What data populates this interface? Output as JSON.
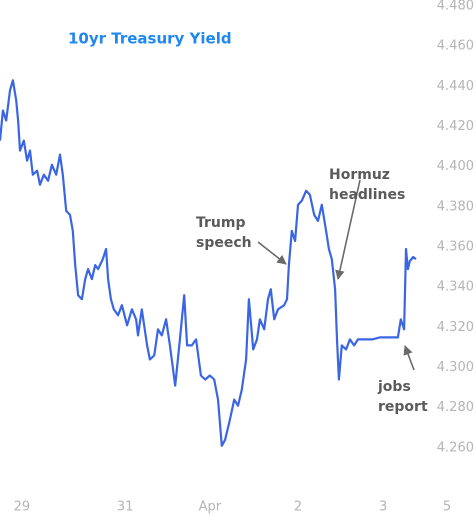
{
  "chart_data": {
    "type": "line",
    "title": "10yr Treasury Yield",
    "annotations": [
      [
        "Trump",
        "speech"
      ],
      [
        "Hormuz",
        "headlines"
      ],
      [
        "jobs",
        "report"
      ]
    ],
    "xlim": [
      0,
      100
    ],
    "xticks": [
      {
        "value": 4.6,
        "label": "29"
      },
      {
        "value": 26.3,
        "label": "31"
      },
      {
        "value": 44.1,
        "label": "Apr"
      },
      {
        "value": 62.6,
        "label": "2"
      },
      {
        "value": 80.5,
        "label": "3"
      },
      {
        "value": 93.9,
        "label": "5"
      }
    ],
    "ylim": [
      4.239,
      4.483
    ],
    "yticks": [
      {
        "value": 4.26,
        "label": "4.260"
      },
      {
        "value": 4.28,
        "label": "4.280"
      },
      {
        "value": 4.3,
        "label": "4.300"
      },
      {
        "value": 4.32,
        "label": "4.320"
      },
      {
        "value": 4.34,
        "label": "4.340"
      },
      {
        "value": 4.36,
        "label": "4.360"
      },
      {
        "value": 4.38,
        "label": "4.380"
      },
      {
        "value": 4.4,
        "label": "4.400"
      },
      {
        "value": 4.42,
        "label": "4.420"
      },
      {
        "value": 4.44,
        "label": "4.440"
      },
      {
        "value": 4.46,
        "label": "4.460"
      },
      {
        "value": 4.48,
        "label": "4.480"
      }
    ],
    "grid": false,
    "series": [
      {
        "color": "#3a66e3",
        "x": [
          0,
          0.6,
          1.3,
          2.1,
          2.7,
          3.4,
          3.8,
          4.2,
          5.0,
          5.7,
          6.3,
          6.9,
          7.8,
          8.4,
          9.2,
          10.1,
          10.9,
          11.8,
          12.6,
          13.2,
          13.9,
          14.7,
          15.3,
          15.8,
          16.4,
          17.2,
          17.9,
          18.5,
          19.3,
          20.0,
          20.6,
          21.6,
          22.3,
          22.7,
          23.3,
          23.9,
          24.8,
          25.6,
          26.7,
          27.7,
          28.6,
          29.0,
          29.8,
          30.9,
          31.5,
          32.4,
          33.2,
          34.0,
          34.9,
          35.7,
          36.8,
          37.8,
          38.7,
          39.3,
          40.3,
          41.2,
          42.2,
          43.1,
          44.1,
          45.0,
          45.8,
          46.6,
          47.3,
          48.3,
          49.2,
          50.0,
          50.8,
          51.7,
          52.3,
          53.2,
          54.0,
          54.6,
          55.5,
          56.3,
          56.9,
          57.6,
          58.4,
          59.7,
          60.3,
          60.7,
          61.3,
          62.0,
          62.6,
          63.4,
          64.3,
          65.1,
          66.0,
          66.8,
          67.6,
          68.5,
          69.1,
          69.7,
          70.4,
          70.8,
          71.2,
          71.8,
          72.7,
          73.5,
          74.4,
          75.2,
          76.1,
          76.9,
          78.2,
          79.8,
          81.5,
          83.6,
          84.2,
          84.9,
          85.3,
          85.7,
          86.1,
          86.8,
          87.4
        ],
        "values": [
          4.413,
          4.428,
          4.423,
          4.438,
          4.443,
          4.433,
          4.423,
          4.408,
          4.413,
          4.403,
          4.408,
          4.396,
          4.398,
          4.391,
          4.396,
          4.393,
          4.401,
          4.396,
          4.406,
          4.396,
          4.378,
          4.376,
          4.368,
          4.351,
          4.336,
          4.334,
          4.344,
          4.349,
          4.344,
          4.351,
          4.349,
          4.354,
          4.359,
          4.344,
          4.334,
          4.329,
          4.326,
          4.331,
          4.321,
          4.329,
          4.324,
          4.316,
          4.329,
          4.311,
          4.304,
          4.306,
          4.319,
          4.316,
          4.324,
          4.311,
          4.291,
          4.314,
          4.336,
          4.311,
          4.311,
          4.314,
          4.296,
          4.294,
          4.296,
          4.294,
          4.284,
          4.261,
          4.264,
          4.274,
          4.284,
          4.281,
          4.289,
          4.304,
          4.334,
          4.309,
          4.314,
          4.324,
          4.319,
          4.334,
          4.339,
          4.324,
          4.329,
          4.331,
          4.334,
          4.351,
          4.368,
          4.363,
          4.381,
          4.383,
          4.388,
          4.386,
          4.376,
          4.373,
          4.381,
          4.368,
          4.359,
          4.354,
          4.339,
          4.314,
          4.294,
          4.311,
          4.309,
          4.314,
          4.311,
          4.314,
          4.314,
          4.314,
          4.314,
          4.315,
          4.315,
          4.315,
          4.324,
          4.319,
          4.359,
          4.349,
          4.353,
          4.355,
          4.354
        ]
      }
    ]
  }
}
